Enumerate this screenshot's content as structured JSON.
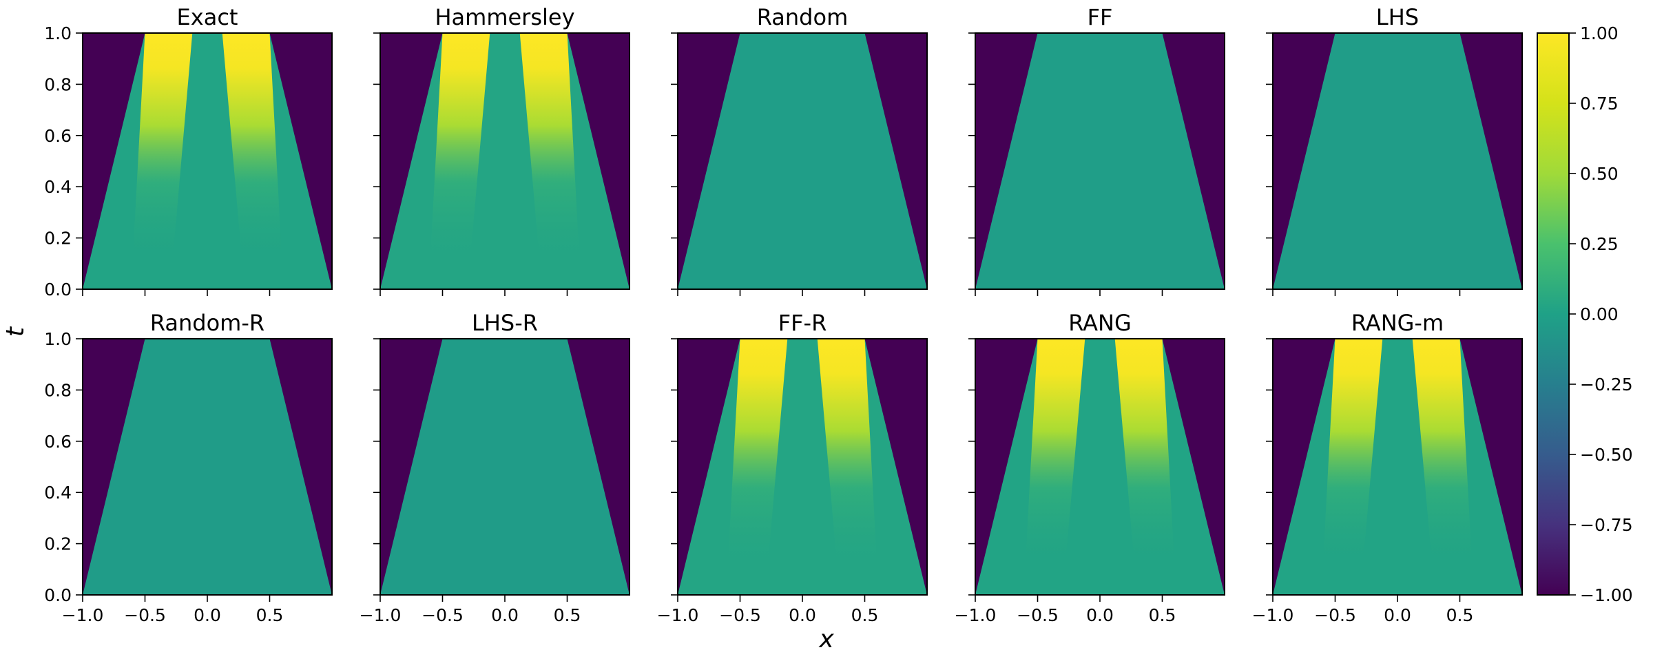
{
  "chart_data": {
    "type": "heatmap",
    "colormap": "viridis",
    "shared_xlabel": "x",
    "shared_ylabel": "t",
    "xlim": [
      -1.0,
      1.0
    ],
    "ylim": [
      0.0,
      1.0
    ],
    "x_ticks": [
      "−1.0",
      "−0.5",
      "0.0",
      "0.5"
    ],
    "y_ticks": [
      "0.0",
      "0.2",
      "0.4",
      "0.6",
      "0.8",
      "1.0"
    ],
    "colorbar": {
      "range": [
        -1.0,
        1.0
      ],
      "ticks": [
        "1.00",
        "0.75",
        "0.50",
        "0.25",
        "0.00",
        "−0.25",
        "−0.50",
        "−0.75",
        "−1.00"
      ]
    },
    "panels": [
      {
        "title": "Exact",
        "pattern": "twin-peaks",
        "level": 0.02
      },
      {
        "title": "Hammersley",
        "pattern": "twin-peaks",
        "level": 0.03
      },
      {
        "title": "Random",
        "pattern": "plateau",
        "level": -0.02
      },
      {
        "title": "FF",
        "pattern": "plateau",
        "level": -0.02
      },
      {
        "title": "LHS",
        "pattern": "plateau",
        "level": -0.03
      },
      {
        "title": "Random-R",
        "pattern": "plateau",
        "level": -0.04
      },
      {
        "title": "LHS-R",
        "pattern": "plateau",
        "level": -0.04
      },
      {
        "title": "FF-R",
        "pattern": "twin-peaks",
        "level": 0.03
      },
      {
        "title": "RANG",
        "pattern": "twin-peaks",
        "level": 0.02
      },
      {
        "title": "RANG-m",
        "pattern": "twin-peaks",
        "level": 0.02
      }
    ]
  }
}
